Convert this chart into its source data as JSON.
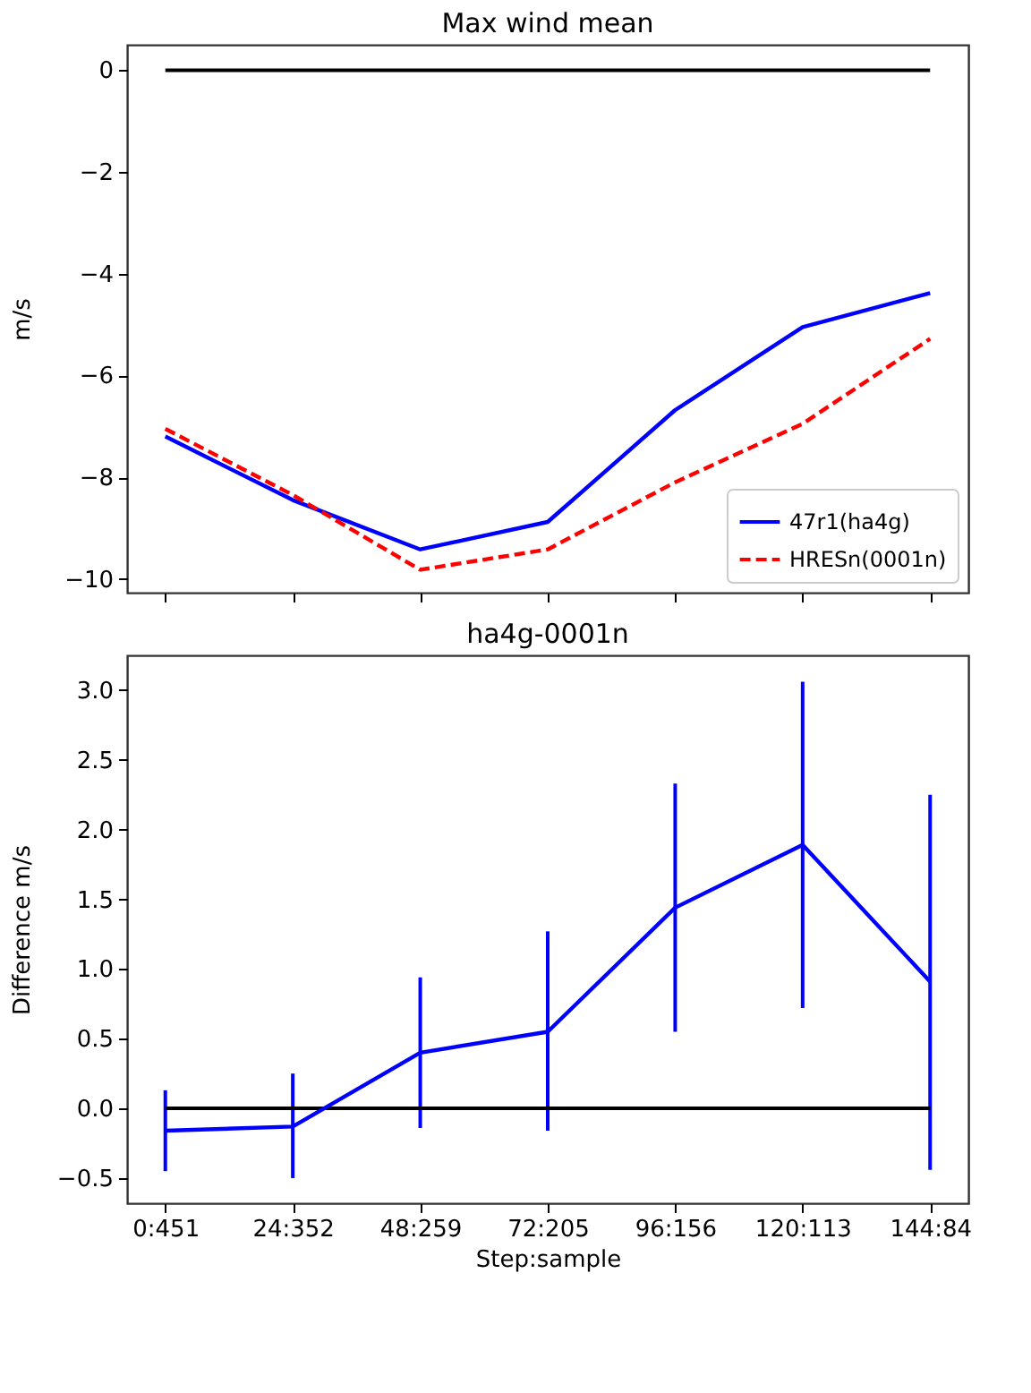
{
  "chart_data": [
    {
      "type": "line",
      "title": "Max wind mean",
      "ylabel": "m/s",
      "categories": [
        null,
        null,
        null,
        null,
        null,
        null,
        null
      ],
      "series": [
        {
          "name": "47r1(ha4g)",
          "color": "#0000ff",
          "line_style": "solid",
          "values": [
            -7.2,
            -8.45,
            -9.42,
            -8.88,
            -6.68,
            -5.05,
            -4.38
          ]
        },
        {
          "name": "HRESn(0001n)",
          "color": "#ff0000",
          "line_style": "dashed",
          "values": [
            -7.05,
            -8.35,
            -9.82,
            -9.42,
            -8.1,
            -6.95,
            -5.28
          ]
        }
      ],
      "ylim": [
        -10.27,
        0.5
      ],
      "yticks": [
        -10,
        -8,
        -6,
        -4,
        -2,
        0
      ],
      "ref_lines": [
        {
          "axis": "y",
          "value": 0,
          "color": "#000000"
        }
      ],
      "legend": "bottom right",
      "grid": false,
      "tick_labels": "y"
    },
    {
      "type": "line",
      "title": "ha4g-0001n",
      "xlabel": "Step:sample",
      "ylabel": "Difference m/s",
      "categories": [
        "0:451",
        "24:352",
        "48:259",
        "72:205",
        "96:156",
        "120:113",
        "144:84"
      ],
      "series": [
        {
          "color": "#0000ff",
          "values": [
            -0.16,
            -0.13,
            0.4,
            0.55,
            1.44,
            1.89,
            0.91
          ],
          "errors": [
            [
              -0.45,
              0.13
            ],
            [
              -0.5,
              0.25
            ],
            [
              -0.14,
              0.94
            ],
            [
              -0.16,
              1.27
            ],
            [
              0.55,
              2.33
            ],
            [
              0.72,
              3.06
            ],
            [
              -0.44,
              2.25
            ]
          ]
        }
      ],
      "ylim": [
        -0.68,
        3.25
      ],
      "yticks": [
        {
          "value": -0.5,
          "label": "−0.5"
        },
        {
          "value": 0,
          "label": "0.0"
        },
        {
          "value": 0.5,
          "label": "0.5"
        },
        {
          "value": 1,
          "label": "1.0"
        },
        {
          "value": 1.5,
          "label": "1.5"
        },
        {
          "value": 2,
          "label": "2.0"
        },
        {
          "value": 2.5,
          "label": "2.5"
        },
        {
          "value": 3,
          "label": "3.0"
        }
      ],
      "ref_lines": [
        {
          "axis": "y",
          "value": 0,
          "color": "#000000"
        }
      ],
      "grid": false
    }
  ]
}
